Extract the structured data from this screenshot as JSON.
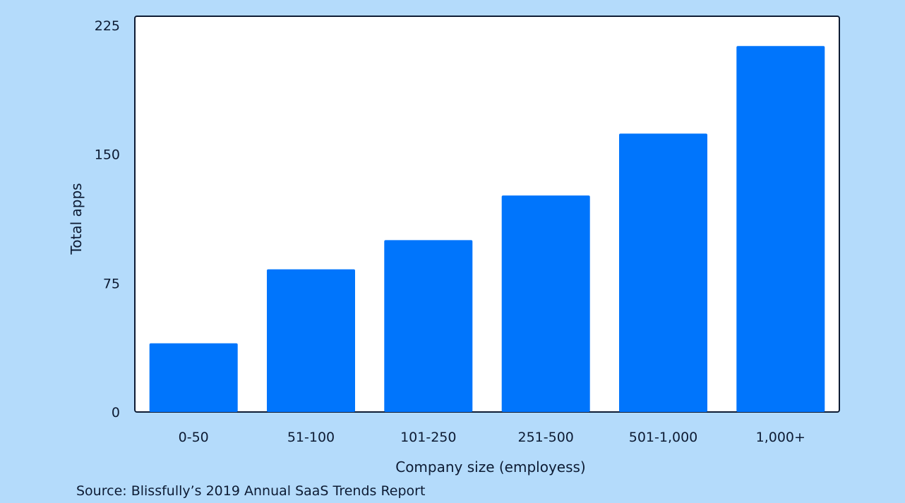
{
  "chart_data": {
    "type": "bar",
    "categories": [
      "0-50",
      "51-100",
      "101-250",
      "251-500",
      "501-1,000",
      "1,000+"
    ],
    "values": [
      40,
      83,
      100,
      126,
      162,
      213
    ],
    "xlabel": "Company size (employess)",
    "ylabel": "Total apps",
    "ylim": [
      0,
      225
    ],
    "yticks": [
      0,
      75,
      150,
      225
    ],
    "grid": false,
    "colors": {
      "bar": "#0075fc",
      "background": "#b4dbfb",
      "plot_background": "#ffffff",
      "frame": "#0d1b33"
    }
  },
  "source": "Source: Blissfully’s 2019 Annual SaaS Trends Report"
}
